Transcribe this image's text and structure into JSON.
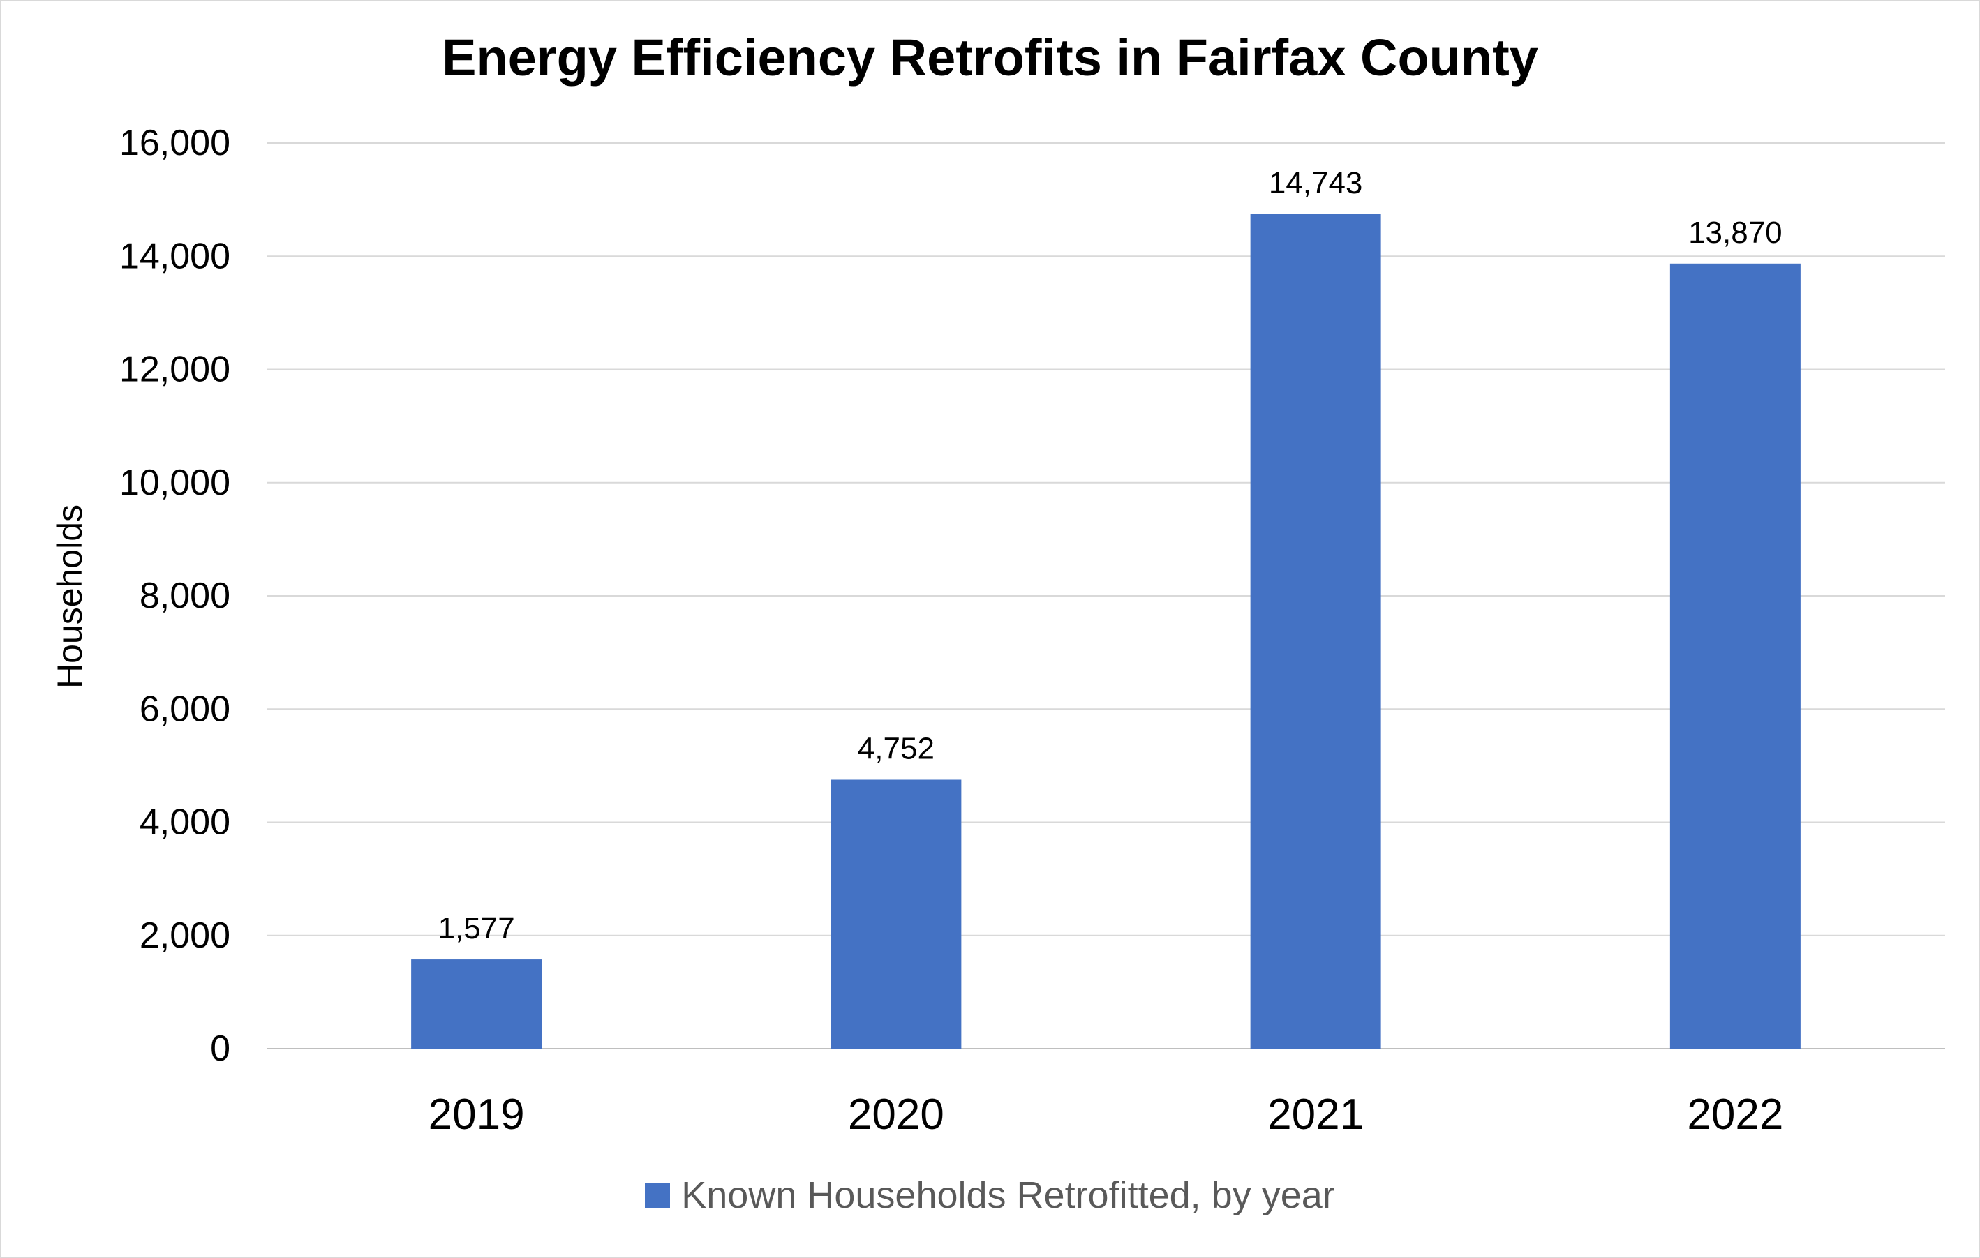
{
  "chart_data": {
    "type": "bar",
    "title": "Energy Efficiency Retrofits in Fairfax County",
    "xlabel": "",
    "ylabel": "Households",
    "categories": [
      "2019",
      "2020",
      "2021",
      "2022"
    ],
    "series": [
      {
        "name": "Known Households Retrofitted, by year",
        "values": [
          1577,
          4752,
          14743,
          13870
        ],
        "labels": [
          "1,577",
          "4,752",
          "14,743",
          "13,870"
        ],
        "color": "#4472c4"
      }
    ],
    "ylim": [
      0,
      16000
    ],
    "yticks": [
      0,
      2000,
      4000,
      6000,
      8000,
      10000,
      12000,
      14000,
      16000
    ],
    "ytick_labels": [
      "0",
      "2,000",
      "4,000",
      "6,000",
      "8,000",
      "10,000",
      "12,000",
      "14,000",
      "16,000"
    ],
    "grid": true,
    "legend_position": "bottom"
  }
}
